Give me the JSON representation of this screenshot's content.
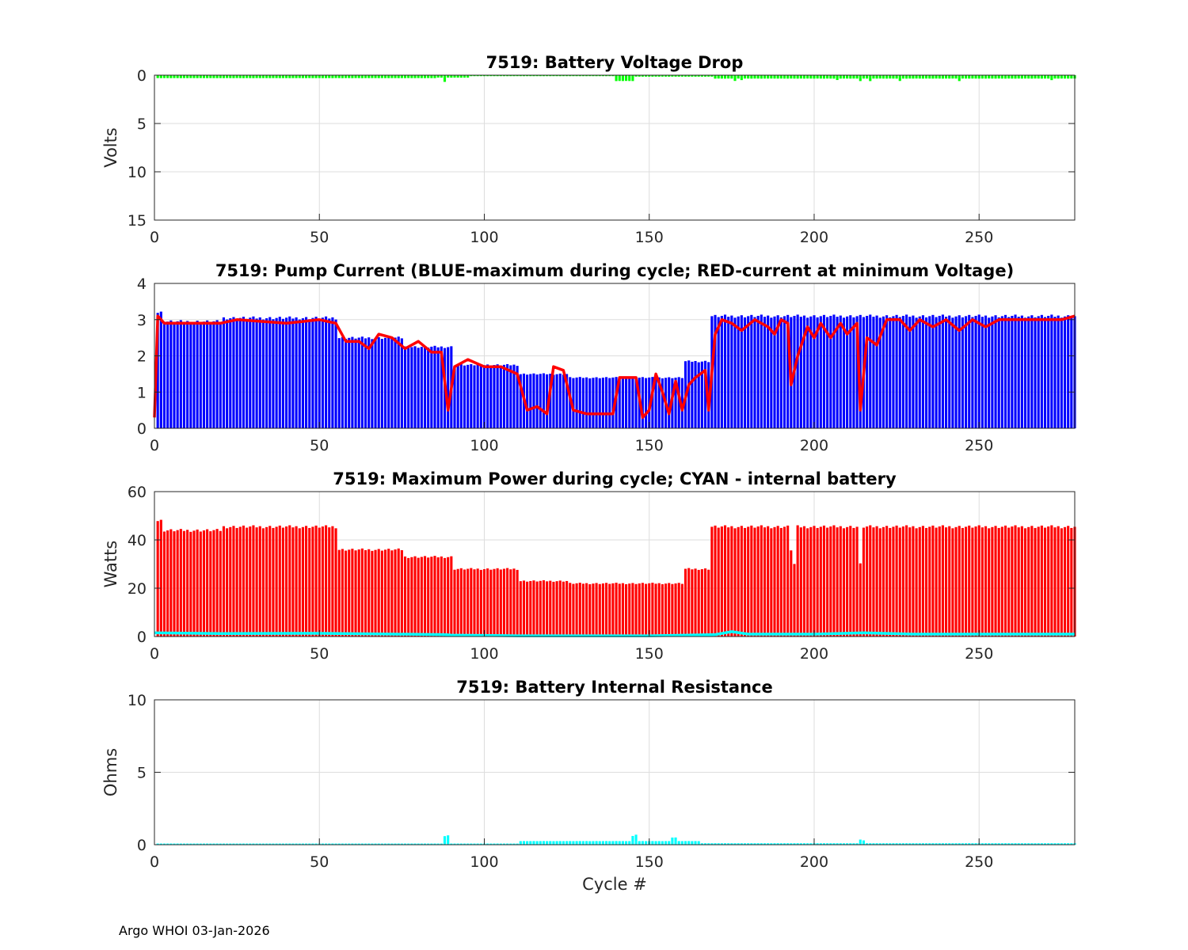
{
  "figure": {
    "footer": "Argo WHOI 03-Jan-2026"
  },
  "chart_data": [
    {
      "type": "bar",
      "title": "7519: Battery Voltage Drop",
      "xlabel": "",
      "ylabel": "Volts",
      "xlim": [
        0,
        279
      ],
      "ylim": [
        0,
        15
      ],
      "y_reversed": true,
      "xticks": [
        0,
        50,
        100,
        150,
        200,
        250
      ],
      "yticks": [
        0,
        5,
        10,
        15
      ],
      "grid": true,
      "series": [
        {
          "color": "#00ff00",
          "segments": [
            {
              "from": 1,
              "to": 85,
              "value": 0.3
            },
            {
              "from": 86,
              "to": 95,
              "value": 0.25
            },
            {
              "from": 96,
              "to": 139,
              "value": 0.1
            },
            {
              "from": 140,
              "to": 145,
              "value": 0.6
            },
            {
              "from": 146,
              "to": 169,
              "value": 0.15
            },
            {
              "from": 170,
              "to": 279,
              "value": 0.35
            }
          ],
          "spikes": [
            {
              "x": 88,
              "value": 0.7
            },
            {
              "x": 176,
              "value": 0.6
            },
            {
              "x": 178,
              "value": 0.5
            },
            {
              "x": 207,
              "value": 0.5
            },
            {
              "x": 214,
              "value": 0.6
            },
            {
              "x": 217,
              "value": 0.6
            },
            {
              "x": 226,
              "value": 0.6
            },
            {
              "x": 244,
              "value": 0.6
            },
            {
              "x": 272,
              "value": 0.5
            }
          ]
        }
      ]
    },
    {
      "type": "bar+line",
      "title": "7519: Pump Current (BLUE-maximum during cycle; RED-current at minimum Voltage)",
      "xlabel": "",
      "ylabel": "",
      "xlim": [
        0,
        279
      ],
      "ylim": [
        0,
        4
      ],
      "xticks": [
        0,
        50,
        100,
        150,
        200,
        250
      ],
      "yticks": [
        0,
        1,
        2,
        3,
        4
      ],
      "grid": true,
      "series": [
        {
          "kind": "bar",
          "color": "#0000ff",
          "segments": [
            {
              "from": 1,
              "to": 2,
              "value": 3.2
            },
            {
              "from": 3,
              "to": 20,
              "value": 2.95
            },
            {
              "from": 21,
              "to": 55,
              "value": 3.05
            },
            {
              "from": 56,
              "to": 75,
              "value": 2.5
            },
            {
              "from": 76,
              "to": 90,
              "value": 2.25
            },
            {
              "from": 91,
              "to": 110,
              "value": 1.75
            },
            {
              "from": 111,
              "to": 125,
              "value": 1.5
            },
            {
              "from": 126,
              "to": 145,
              "value": 1.4
            },
            {
              "from": 146,
              "to": 160,
              "value": 1.4
            },
            {
              "from": 161,
              "to": 168,
              "value": 1.85
            },
            {
              "from": 169,
              "to": 279,
              "value": 3.1
            }
          ]
        },
        {
          "kind": "line",
          "color": "#ff0000",
          "points": [
            [
              0,
              0.3
            ],
            [
              1,
              3.1
            ],
            [
              3,
              2.9
            ],
            [
              20,
              2.9
            ],
            [
              25,
              3.0
            ],
            [
              40,
              2.9
            ],
            [
              50,
              3.0
            ],
            [
              55,
              2.9
            ],
            [
              58,
              2.4
            ],
            [
              62,
              2.4
            ],
            [
              65,
              2.2
            ],
            [
              68,
              2.6
            ],
            [
              72,
              2.5
            ],
            [
              76,
              2.2
            ],
            [
              80,
              2.4
            ],
            [
              84,
              2.1
            ],
            [
              87,
              2.1
            ],
            [
              89,
              0.5
            ],
            [
              91,
              1.7
            ],
            [
              95,
              1.9
            ],
            [
              100,
              1.7
            ],
            [
              105,
              1.7
            ],
            [
              110,
              1.5
            ],
            [
              113,
              0.5
            ],
            [
              116,
              0.6
            ],
            [
              119,
              0.4
            ],
            [
              121,
              1.7
            ],
            [
              124,
              1.6
            ],
            [
              127,
              0.5
            ],
            [
              131,
              0.4
            ],
            [
              135,
              0.4
            ],
            [
              139,
              0.4
            ],
            [
              141,
              1.4
            ],
            [
              146,
              1.4
            ],
            [
              148,
              0.3
            ],
            [
              150,
              0.5
            ],
            [
              152,
              1.5
            ],
            [
              154,
              1.0
            ],
            [
              156,
              0.4
            ],
            [
              158,
              1.3
            ],
            [
              160,
              0.5
            ],
            [
              162,
              1.2
            ],
            [
              164,
              1.4
            ],
            [
              167,
              1.6
            ],
            [
              168,
              0.5
            ],
            [
              170,
              2.6
            ],
            [
              172,
              3.0
            ],
            [
              175,
              2.9
            ],
            [
              178,
              2.7
            ],
            [
              182,
              3.0
            ],
            [
              186,
              2.8
            ],
            [
              188,
              2.6
            ],
            [
              190,
              3.0
            ],
            [
              192,
              2.9
            ],
            [
              193,
              1.2
            ],
            [
              195,
              2.0
            ],
            [
              198,
              2.8
            ],
            [
              200,
              2.5
            ],
            [
              202,
              2.9
            ],
            [
              205,
              2.5
            ],
            [
              208,
              2.9
            ],
            [
              210,
              2.6
            ],
            [
              213,
              2.9
            ],
            [
              214,
              0.5
            ],
            [
              216,
              2.5
            ],
            [
              219,
              2.3
            ],
            [
              222,
              3.0
            ],
            [
              226,
              3.0
            ],
            [
              229,
              2.7
            ],
            [
              232,
              3.0
            ],
            [
              236,
              2.8
            ],
            [
              240,
              3.0
            ],
            [
              244,
              2.7
            ],
            [
              248,
              3.0
            ],
            [
              252,
              2.8
            ],
            [
              256,
              3.0
            ],
            [
              260,
              3.0
            ],
            [
              265,
              3.0
            ],
            [
              270,
              3.0
            ],
            [
              275,
              3.0
            ],
            [
              279,
              3.1
            ]
          ]
        }
      ]
    },
    {
      "type": "bar+line",
      "title": "7519: Maximum Power during cycle; CYAN - internal battery",
      "xlabel": "",
      "ylabel": "Watts",
      "xlim": [
        0,
        279
      ],
      "ylim": [
        0,
        60
      ],
      "xticks": [
        0,
        50,
        100,
        150,
        200,
        250
      ],
      "yticks": [
        0,
        20,
        40,
        60
      ],
      "grid": true,
      "series": [
        {
          "kind": "bar",
          "color": "#ff0000",
          "segments": [
            {
              "from": 1,
              "to": 2,
              "value": 48
            },
            {
              "from": 3,
              "to": 20,
              "value": 44
            },
            {
              "from": 21,
              "to": 55,
              "value": 45.5
            },
            {
              "from": 56,
              "to": 75,
              "value": 36
            },
            {
              "from": 76,
              "to": 90,
              "value": 33
            },
            {
              "from": 91,
              "to": 110,
              "value": 28
            },
            {
              "from": 111,
              "to": 125,
              "value": 23
            },
            {
              "from": 126,
              "to": 145,
              "value": 22
            },
            {
              "from": 146,
              "to": 160,
              "value": 22
            },
            {
              "from": 161,
              "to": 168,
              "value": 28
            },
            {
              "from": 169,
              "to": 279,
              "value": 45.5
            }
          ],
          "dips": [
            {
              "x": 193,
              "value": 36
            },
            {
              "x": 194,
              "value": 30
            },
            {
              "x": 214,
              "value": 30
            }
          ]
        },
        {
          "kind": "line",
          "color": "#00ffff",
          "points": [
            [
              0,
              1.5
            ],
            [
              20,
              1.2
            ],
            [
              50,
              1.3
            ],
            [
              88,
              0.8
            ],
            [
              90,
              0.6
            ],
            [
              110,
              0.3
            ],
            [
              150,
              0.3
            ],
            [
              170,
              0.8
            ],
            [
              175,
              2.0
            ],
            [
              180,
              1.0
            ],
            [
              200,
              1.0
            ],
            [
              215,
              1.5
            ],
            [
              230,
              1.0
            ],
            [
              279,
              1.0
            ]
          ]
        }
      ]
    },
    {
      "type": "bar",
      "title": "7519: Battery Internal Resistance",
      "xlabel": "Cycle #",
      "ylabel": "Ohms",
      "xlim": [
        0,
        279
      ],
      "ylim": [
        0,
        10
      ],
      "xticks": [
        0,
        50,
        100,
        150,
        200,
        250
      ],
      "yticks": [
        0,
        5,
        10
      ],
      "grid": true,
      "series": [
        {
          "color": "#00ffff",
          "segments": [
            {
              "from": 1,
              "to": 110,
              "value": 0.08
            },
            {
              "from": 111,
              "to": 165,
              "value": 0.25
            },
            {
              "from": 166,
              "to": 279,
              "value": 0.1
            }
          ],
          "spikes": [
            {
              "x": 88,
              "value": 0.6
            },
            {
              "x": 89,
              "value": 0.65
            },
            {
              "x": 145,
              "value": 0.6
            },
            {
              "x": 146,
              "value": 0.7
            },
            {
              "x": 157,
              "value": 0.5
            },
            {
              "x": 158,
              "value": 0.5
            },
            {
              "x": 214,
              "value": 0.35
            },
            {
              "x": 215,
              "value": 0.3
            }
          ]
        }
      ]
    }
  ]
}
